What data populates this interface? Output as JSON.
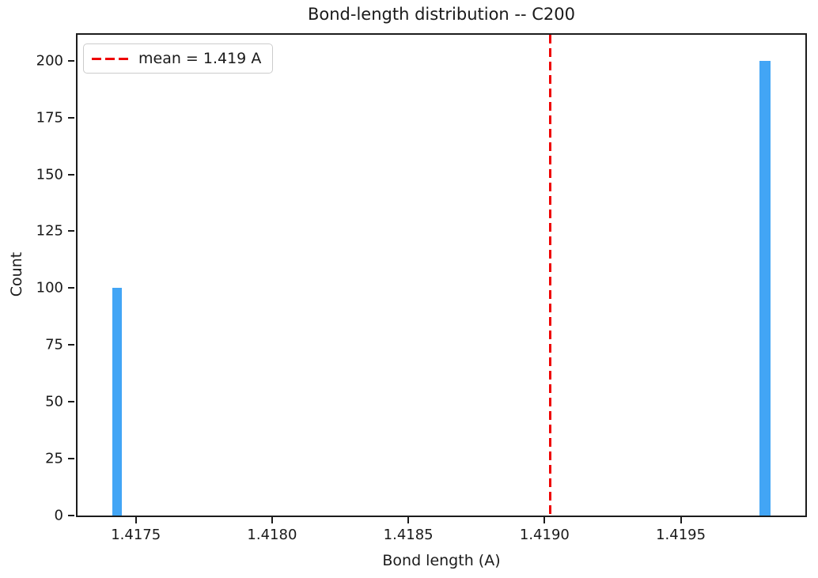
{
  "figure": {
    "title": "Bond-length distribution -- C200",
    "xlabel": "Bond length (A)",
    "ylabel": "Count",
    "background_color": "#ffffff",
    "axis_color": "#1c1c1c"
  },
  "legend": {
    "label": "mean = 1.419 A",
    "position": "upper left",
    "line_color": "#ee0000",
    "line_style": "dashed"
  },
  "chart_data": {
    "type": "bar",
    "title": "Bond-length distribution -- C200",
    "xlabel": "Bond length (A)",
    "ylabel": "Count",
    "bars": [
      {
        "x": 1.41743,
        "count": 100,
        "bin_width": 3.47e-05
      },
      {
        "x": 1.41981,
        "count": 200,
        "bin_width": 4.1e-05
      }
    ],
    "bar_color": "#42a5f5",
    "mean_line": {
      "x": 1.41902,
      "label": "mean = 1.419 A",
      "color": "#ee0000",
      "style": "dashed"
    },
    "xlim": [
      1.417286,
      1.419957
    ],
    "ylim": [
      0,
      211.4
    ],
    "xticks": {
      "values": [
        1.4175,
        1.418,
        1.4185,
        1.419,
        1.4195
      ],
      "labels": [
        "1.4175",
        "1.4180",
        "1.4185",
        "1.4190",
        "1.4195"
      ]
    },
    "yticks": {
      "values": [
        0,
        25,
        50,
        75,
        100,
        125,
        150,
        175,
        200
      ],
      "labels": [
        "0",
        "25",
        "50",
        "75",
        "100",
        "125",
        "150",
        "175",
        "200"
      ]
    },
    "grid": false,
    "legend_position": "upper left"
  }
}
